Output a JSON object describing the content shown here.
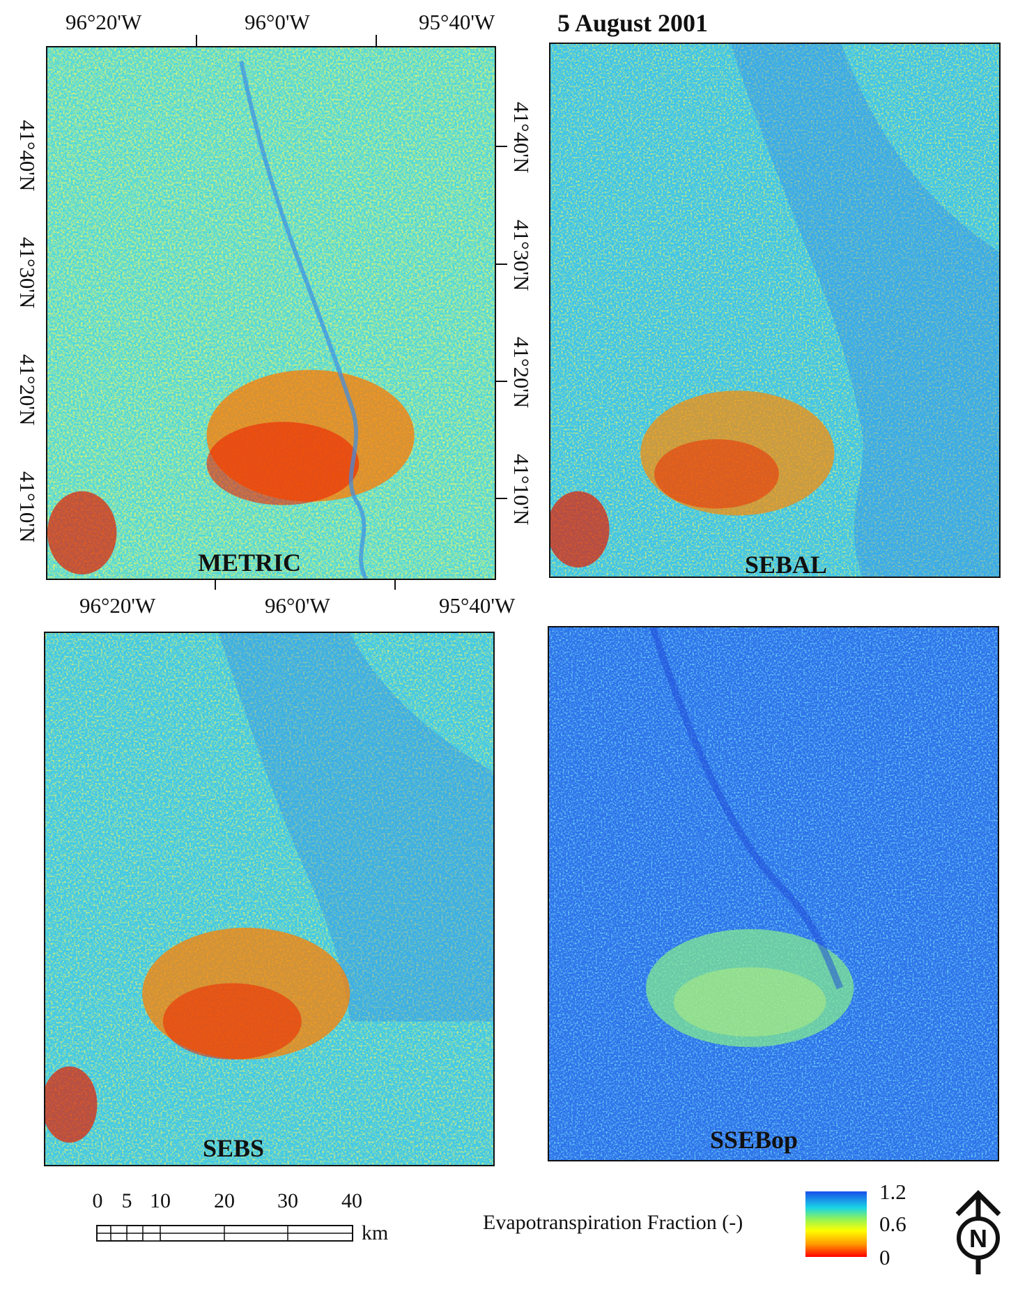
{
  "title": "5 August 2001",
  "panels": [
    {
      "label": "METRIC"
    },
    {
      "label": "SEBAL"
    },
    {
      "label": "SEBS"
    },
    {
      "label": "SSEBop"
    }
  ],
  "longitude_labels": [
    "96°20'W",
    "96°0'W",
    "95°40'W"
  ],
  "latitude_labels": [
    "41°40'N",
    "41°30'N",
    "41°20'N",
    "41°10'N"
  ],
  "scale_bar": {
    "ticks": [
      "0",
      "5",
      "10",
      "20",
      "30",
      "40"
    ],
    "unit": "km"
  },
  "legend": {
    "title": "Evapotranspiration Fraction (-)",
    "max": "1.2",
    "mid": "0.6",
    "min": "0",
    "colors": [
      "#ff0000",
      "#ff9d00",
      "#ffff00",
      "#8ff35a",
      "#19d4e6",
      "#1a4eeb"
    ]
  },
  "north_arrow": {
    "letter": "N",
    "icon": "north-arrow-icon"
  }
}
